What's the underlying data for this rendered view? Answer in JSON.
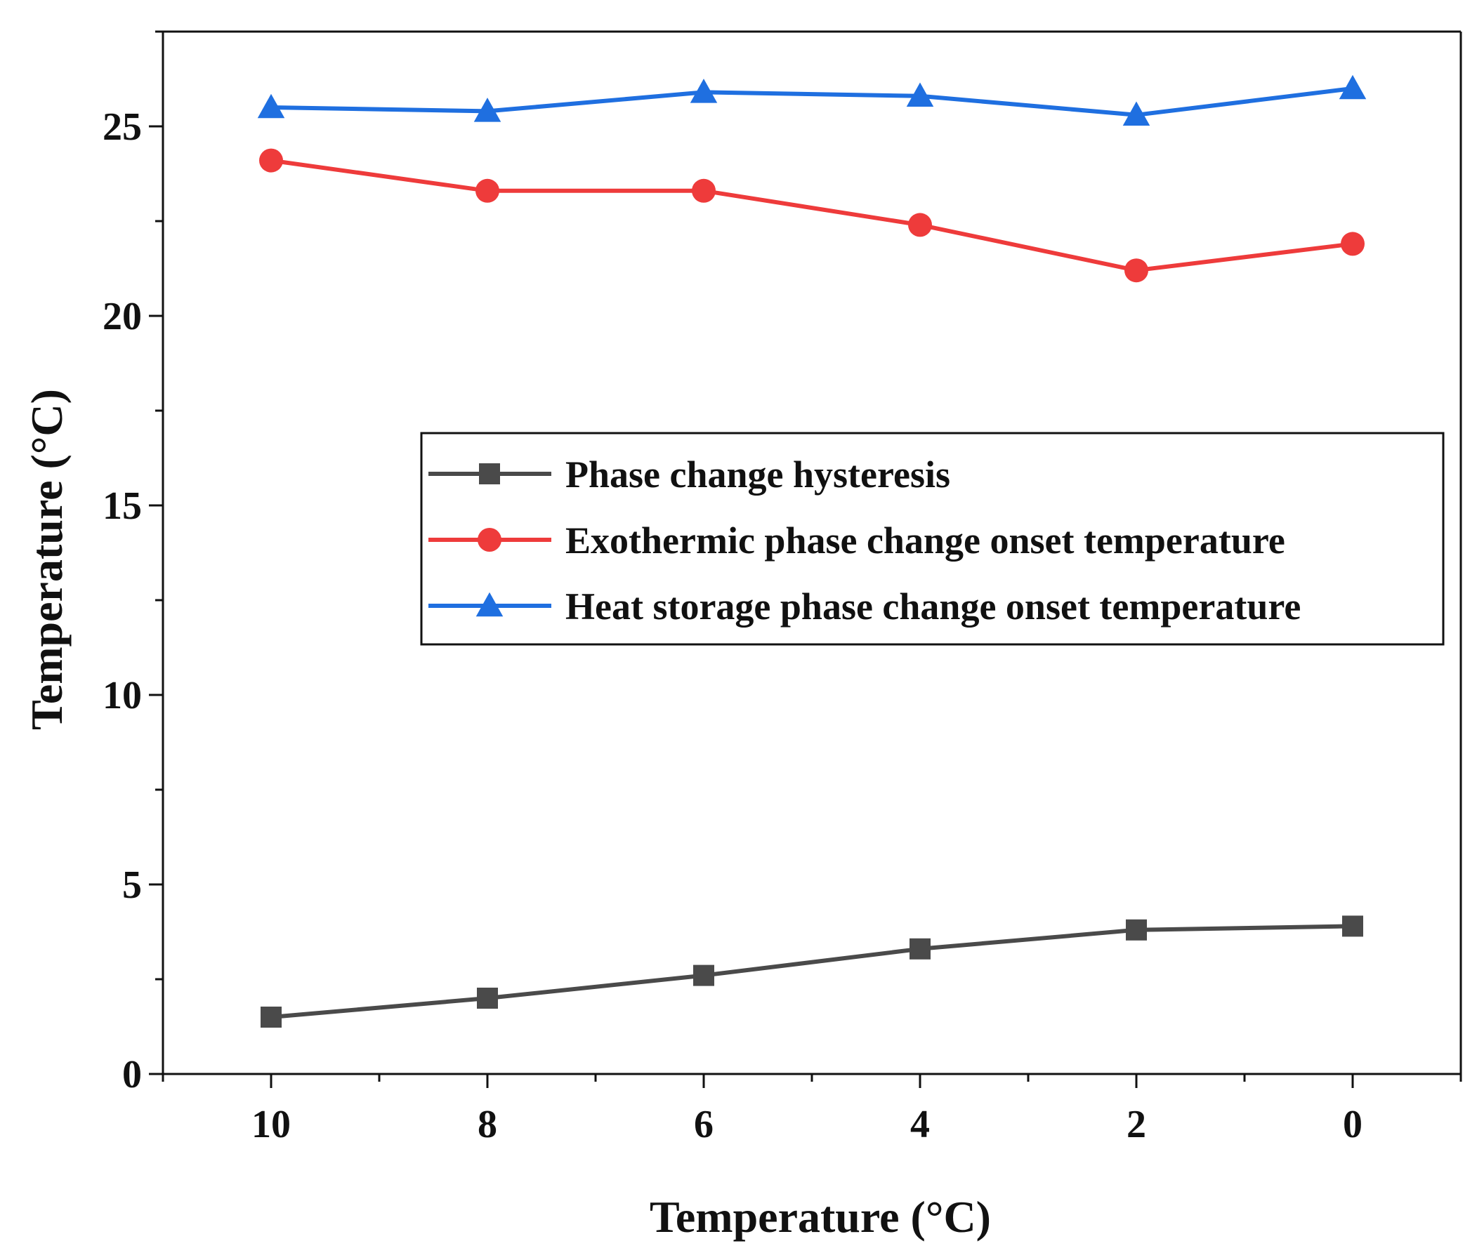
{
  "chart_data": {
    "type": "line",
    "xlabel": "Temperature (°C)",
    "ylabel": "Temperature (°C)",
    "x": [
      10,
      8,
      6,
      4,
      2,
      0
    ],
    "xlim": [
      11,
      -1
    ],
    "ylim": [
      0,
      27.5
    ],
    "x_ticks": [
      10,
      8,
      6,
      4,
      2,
      0
    ],
    "x_tick_labels": [
      "10",
      "8",
      "6",
      "4",
      "2",
      "0"
    ],
    "y_ticks": [
      0,
      5,
      10,
      15,
      20,
      25
    ],
    "y_tick_labels": [
      "0",
      "5",
      "10",
      "15",
      "20",
      "25"
    ],
    "grid": false,
    "legend_position": "center-right",
    "series": [
      {
        "name": "Phase change hysteresis",
        "color": "#4a4a4a",
        "marker": "square",
        "values": [
          1.5,
          2.0,
          2.6,
          3.3,
          3.8,
          3.9
        ]
      },
      {
        "name": "Exothermic phase change onset temperature",
        "color": "#ee3b3b",
        "marker": "circle",
        "values": [
          24.1,
          23.3,
          23.3,
          22.4,
          21.2,
          21.9
        ]
      },
      {
        "name": "Heat storage phase change onset temperature",
        "color": "#1f6fe0",
        "marker": "triangle",
        "values": [
          25.5,
          25.4,
          25.9,
          25.8,
          25.3,
          26.0
        ]
      }
    ]
  }
}
